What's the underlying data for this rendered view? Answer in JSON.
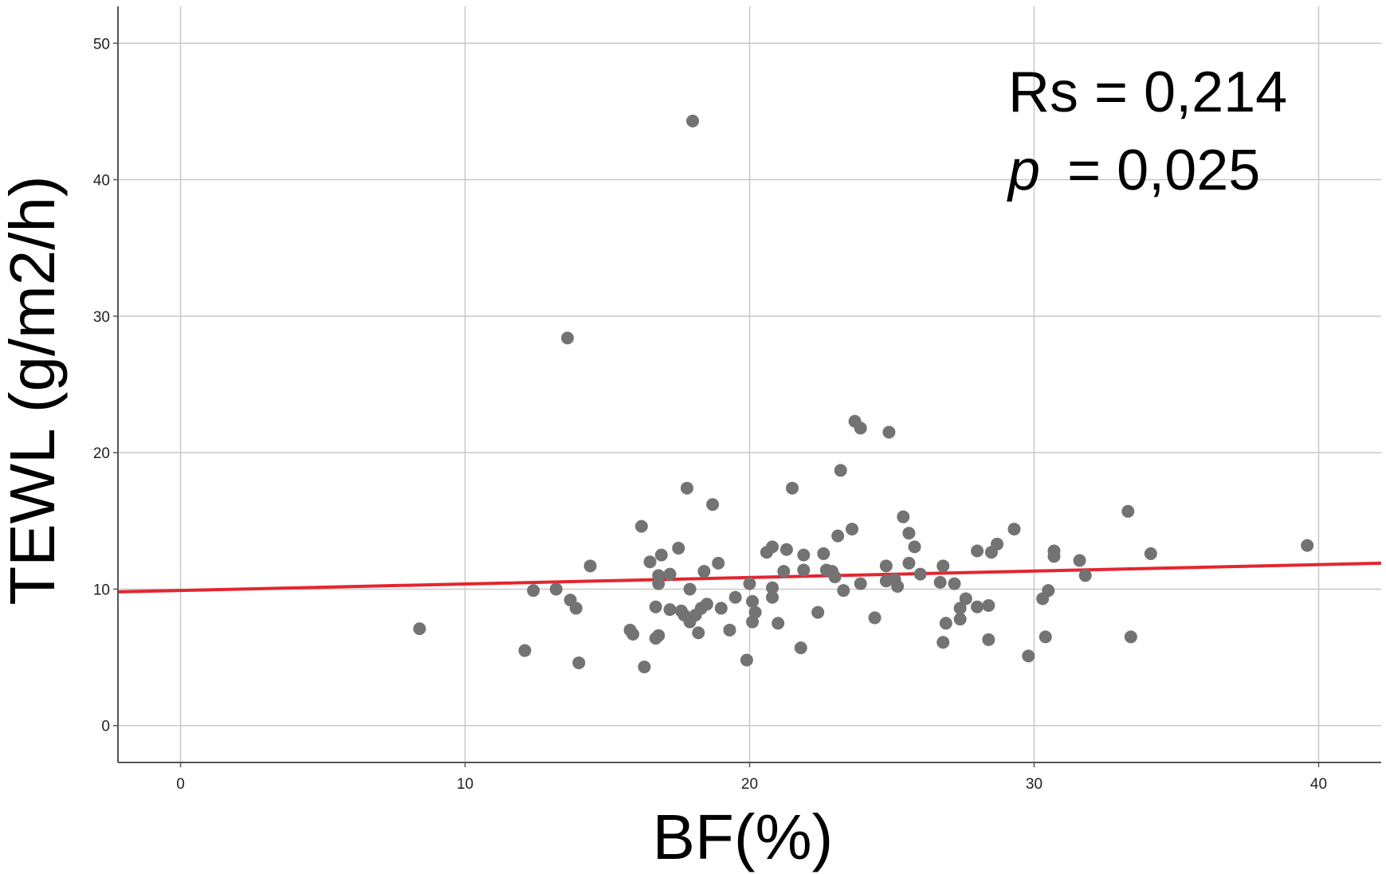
{
  "chart_data": {
    "type": "scatter",
    "xlabel": "BF(%)",
    "ylabel": "TEWL (g/m2/h)",
    "xlim": [
      -2.2,
      42.2
    ],
    "ylim": [
      -2.7,
      52.7
    ],
    "xticks": [
      0,
      10,
      20,
      30,
      40
    ],
    "yticks": [
      0,
      10,
      20,
      30,
      40,
      50
    ],
    "grid": true,
    "annotations": {
      "rs_label": "Rs = 0,214",
      "p_symbol": "p",
      "p_value": "= 0,025"
    },
    "fit_line": {
      "x": [
        -2.2,
        42.2
      ],
      "y": [
        9.8,
        11.9
      ]
    },
    "colors": {
      "points": "#737373",
      "fit_line": "#e3262f",
      "grid": "#c8c8c8",
      "axis": "#555555"
    },
    "points": [
      {
        "x": 8.4,
        "y": 7.1
      },
      {
        "x": 12.1,
        "y": 5.5
      },
      {
        "x": 12.4,
        "y": 9.9
      },
      {
        "x": 13.2,
        "y": 10.0
      },
      {
        "x": 13.6,
        "y": 28.4
      },
      {
        "x": 13.7,
        "y": 9.2
      },
      {
        "x": 13.9,
        "y": 8.6
      },
      {
        "x": 14.0,
        "y": 4.6
      },
      {
        "x": 14.4,
        "y": 11.7
      },
      {
        "x": 15.8,
        "y": 7.0
      },
      {
        "x": 15.9,
        "y": 6.7
      },
      {
        "x": 16.2,
        "y": 14.6
      },
      {
        "x": 16.3,
        "y": 4.3
      },
      {
        "x": 16.5,
        "y": 12.0
      },
      {
        "x": 16.7,
        "y": 6.4
      },
      {
        "x": 16.7,
        "y": 8.7
      },
      {
        "x": 16.8,
        "y": 6.6
      },
      {
        "x": 16.8,
        "y": 11.0
      },
      {
        "x": 16.8,
        "y": 10.4
      },
      {
        "x": 16.9,
        "y": 12.5
      },
      {
        "x": 17.2,
        "y": 8.5
      },
      {
        "x": 17.2,
        "y": 11.1
      },
      {
        "x": 17.5,
        "y": 13.0
      },
      {
        "x": 17.6,
        "y": 8.4
      },
      {
        "x": 17.7,
        "y": 8.1
      },
      {
        "x": 17.8,
        "y": 17.4
      },
      {
        "x": 17.9,
        "y": 10.0
      },
      {
        "x": 17.9,
        "y": 7.6
      },
      {
        "x": 18.0,
        "y": 44.3
      },
      {
        "x": 18.1,
        "y": 8.1
      },
      {
        "x": 18.2,
        "y": 6.8
      },
      {
        "x": 18.3,
        "y": 8.6
      },
      {
        "x": 18.4,
        "y": 11.3
      },
      {
        "x": 18.5,
        "y": 8.9
      },
      {
        "x": 18.7,
        "y": 16.2
      },
      {
        "x": 18.9,
        "y": 11.9
      },
      {
        "x": 19.0,
        "y": 8.6
      },
      {
        "x": 19.3,
        "y": 7.0
      },
      {
        "x": 19.5,
        "y": 9.4
      },
      {
        "x": 19.9,
        "y": 4.8
      },
      {
        "x": 20.0,
        "y": 10.4
      },
      {
        "x": 20.1,
        "y": 9.1
      },
      {
        "x": 20.1,
        "y": 7.6
      },
      {
        "x": 20.2,
        "y": 8.3
      },
      {
        "x": 20.6,
        "y": 12.7
      },
      {
        "x": 20.8,
        "y": 13.1
      },
      {
        "x": 20.8,
        "y": 10.1
      },
      {
        "x": 20.8,
        "y": 9.4
      },
      {
        "x": 21.0,
        "y": 7.5
      },
      {
        "x": 21.2,
        "y": 11.3
      },
      {
        "x": 21.3,
        "y": 12.9
      },
      {
        "x": 21.5,
        "y": 17.4
      },
      {
        "x": 21.8,
        "y": 5.7
      },
      {
        "x": 21.9,
        "y": 11.4
      },
      {
        "x": 21.9,
        "y": 12.5
      },
      {
        "x": 22.4,
        "y": 8.3
      },
      {
        "x": 22.6,
        "y": 12.6
      },
      {
        "x": 22.7,
        "y": 11.4
      },
      {
        "x": 22.9,
        "y": 11.3
      },
      {
        "x": 23.0,
        "y": 10.9
      },
      {
        "x": 23.1,
        "y": 13.9
      },
      {
        "x": 23.2,
        "y": 18.7
      },
      {
        "x": 23.3,
        "y": 9.9
      },
      {
        "x": 23.6,
        "y": 14.4
      },
      {
        "x": 23.7,
        "y": 22.3
      },
      {
        "x": 23.9,
        "y": 21.8
      },
      {
        "x": 23.9,
        "y": 10.4
      },
      {
        "x": 24.4,
        "y": 7.9
      },
      {
        "x": 24.8,
        "y": 11.7
      },
      {
        "x": 24.8,
        "y": 10.6
      },
      {
        "x": 24.9,
        "y": 21.5
      },
      {
        "x": 25.1,
        "y": 10.7
      },
      {
        "x": 25.2,
        "y": 10.2
      },
      {
        "x": 25.4,
        "y": 15.3
      },
      {
        "x": 25.6,
        "y": 14.1
      },
      {
        "x": 25.6,
        "y": 11.9
      },
      {
        "x": 25.8,
        "y": 13.1
      },
      {
        "x": 26.0,
        "y": 11.1
      },
      {
        "x": 26.7,
        "y": 10.5
      },
      {
        "x": 26.8,
        "y": 11.7
      },
      {
        "x": 26.8,
        "y": 6.1
      },
      {
        "x": 26.9,
        "y": 7.5
      },
      {
        "x": 27.2,
        "y": 10.4
      },
      {
        "x": 27.4,
        "y": 7.8
      },
      {
        "x": 27.4,
        "y": 8.6
      },
      {
        "x": 27.6,
        "y": 9.3
      },
      {
        "x": 28.0,
        "y": 8.7
      },
      {
        "x": 28.0,
        "y": 12.8
      },
      {
        "x": 28.4,
        "y": 8.8
      },
      {
        "x": 28.4,
        "y": 6.3
      },
      {
        "x": 28.5,
        "y": 12.7
      },
      {
        "x": 28.7,
        "y": 13.3
      },
      {
        "x": 29.3,
        "y": 14.4
      },
      {
        "x": 29.8,
        "y": 5.1
      },
      {
        "x": 30.3,
        "y": 9.3
      },
      {
        "x": 30.4,
        "y": 6.5
      },
      {
        "x": 30.5,
        "y": 9.9
      },
      {
        "x": 30.7,
        "y": 12.4
      },
      {
        "x": 30.7,
        "y": 12.8
      },
      {
        "x": 31.6,
        "y": 12.1
      },
      {
        "x": 31.8,
        "y": 11.0
      },
      {
        "x": 33.3,
        "y": 15.7
      },
      {
        "x": 33.4,
        "y": 6.5
      },
      {
        "x": 34.1,
        "y": 12.6
      },
      {
        "x": 39.6,
        "y": 13.2
      }
    ]
  }
}
